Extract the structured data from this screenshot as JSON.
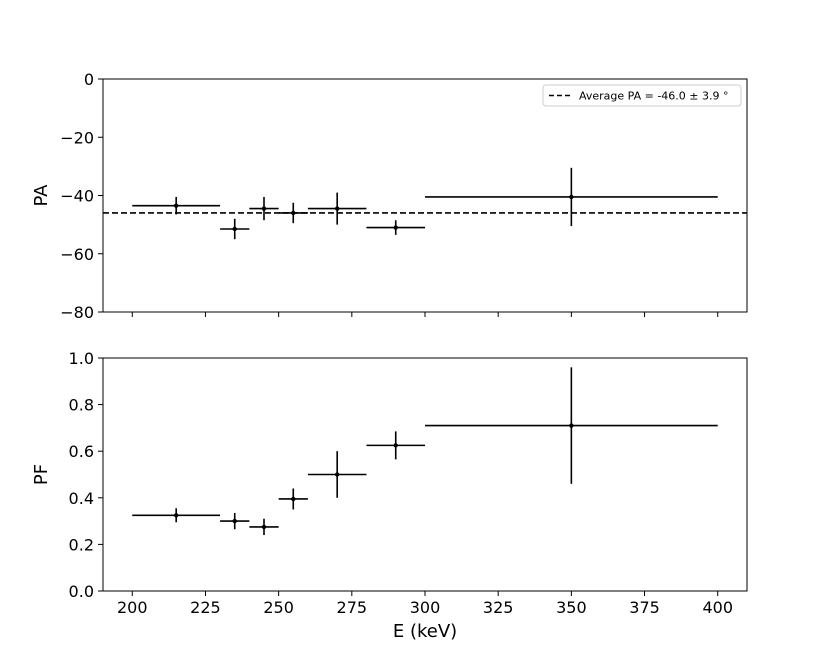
{
  "chart_data": [
    {
      "type": "scatter",
      "style": "errorbar",
      "ylabel": "PA",
      "ylim": [
        -80,
        0
      ],
      "yticks": [
        0,
        -20,
        -40,
        -60,
        -80
      ],
      "ytick_labels": [
        "0",
        "−20",
        "−40",
        "−60",
        "−80"
      ],
      "xlim": [
        190,
        410
      ],
      "x_ticklabels_shown": false,
      "grid": false,
      "legend_position": "top-right",
      "reference_line": {
        "label": "Average PA = -46.0 ± 3.9 °",
        "value": -46.0,
        "style": "dashed"
      },
      "series": [
        {
          "points": [
            {
              "x": 215,
              "x_lo": 200,
              "x_hi": 230,
              "y": -43.5,
              "y_err": 3.0
            },
            {
              "x": 235,
              "x_lo": 230,
              "x_hi": 240,
              "y": -51.5,
              "y_err": 3.5
            },
            {
              "x": 245,
              "x_lo": 240,
              "x_hi": 250,
              "y": -44.5,
              "y_err": 4.0
            },
            {
              "x": 255,
              "x_lo": 250,
              "x_hi": 260,
              "y": -46.0,
              "y_err": 3.5
            },
            {
              "x": 270,
              "x_lo": 260,
              "x_hi": 280,
              "y": -44.5,
              "y_err": 5.5
            },
            {
              "x": 290,
              "x_lo": 280,
              "x_hi": 300,
              "y": -51.0,
              "y_err": 2.5
            },
            {
              "x": 350,
              "x_lo": 300,
              "x_hi": 400,
              "y": -40.5,
              "y_err": 10.0
            }
          ]
        }
      ]
    },
    {
      "type": "scatter",
      "style": "errorbar",
      "xlabel": "E (keV)",
      "ylabel": "PF",
      "xlim": [
        190,
        410
      ],
      "xticks": [
        200,
        225,
        250,
        275,
        300,
        325,
        350,
        375,
        400
      ],
      "xtick_labels": [
        "200",
        "225",
        "250",
        "275",
        "300",
        "325",
        "350",
        "375",
        "400"
      ],
      "ylim": [
        0,
        1.0
      ],
      "yticks": [
        0,
        0.2,
        0.4,
        0.6,
        0.8,
        1.0
      ],
      "ytick_labels": [
        "0.0",
        "0.2",
        "0.4",
        "0.6",
        "0.8",
        "1.0"
      ],
      "grid": false,
      "series": [
        {
          "points": [
            {
              "x": 215,
              "x_lo": 200,
              "x_hi": 230,
              "y": 0.325,
              "y_err": 0.03
            },
            {
              "x": 235,
              "x_lo": 230,
              "x_hi": 240,
              "y": 0.3,
              "y_err": 0.035
            },
            {
              "x": 245,
              "x_lo": 240,
              "x_hi": 250,
              "y": 0.275,
              "y_err": 0.035
            },
            {
              "x": 255,
              "x_lo": 250,
              "x_hi": 260,
              "y": 0.395,
              "y_err": 0.045
            },
            {
              "x": 270,
              "x_lo": 260,
              "x_hi": 280,
              "y": 0.5,
              "y_err": 0.1
            },
            {
              "x": 290,
              "x_lo": 280,
              "x_hi": 300,
              "y": 0.625,
              "y_err": 0.06
            },
            {
              "x": 350,
              "x_lo": 300,
              "x_hi": 400,
              "y": 0.71,
              "y_err": 0.25
            }
          ]
        }
      ]
    }
  ]
}
